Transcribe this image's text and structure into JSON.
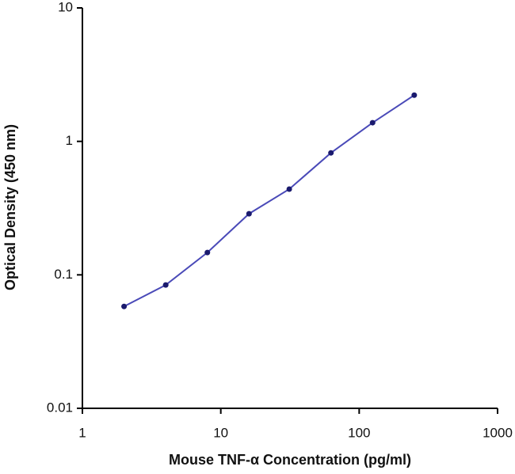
{
  "chart_data": {
    "type": "line",
    "x_label": "Mouse TNF-α Concentration (pg/ml)",
    "y_label": "Optical Density (450 nm)",
    "x": [
      2,
      4,
      8,
      16,
      31.25,
      62.5,
      125,
      250
    ],
    "series": [
      {
        "color": "#4a4ab8",
        "marker_color": "#1a1a6e",
        "values": [
          0.058,
          0.084,
          0.147,
          0.287,
          0.439,
          0.82,
          1.38,
          2.22
        ]
      }
    ],
    "xscale": "log",
    "yscale": "log",
    "xlim": [
      1,
      1000
    ],
    "ylim": [
      0.01,
      10
    ],
    "xticks": [
      1,
      10,
      100,
      1000
    ],
    "yticks": [
      0.01,
      0.1,
      1,
      10
    ],
    "grid": false
  }
}
